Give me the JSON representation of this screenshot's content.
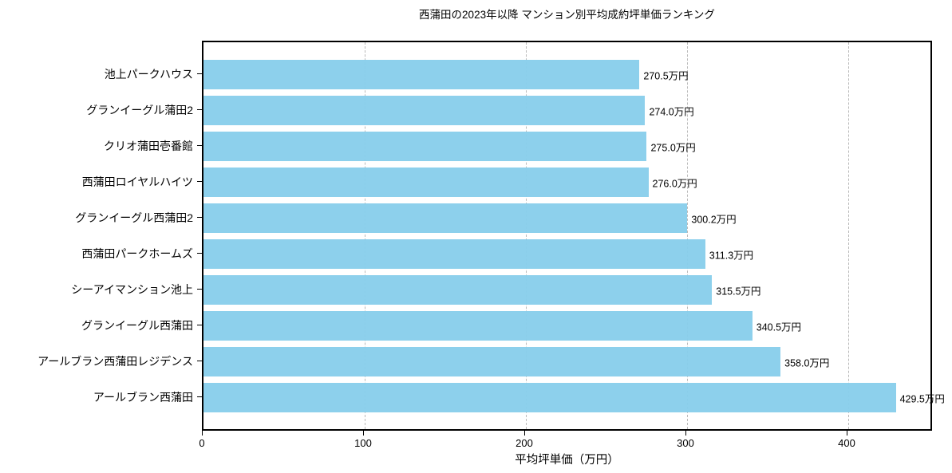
{
  "title": "西蒲田の2023年以降 マンション別平均成約坪単価ランキング",
  "xlabel": "平均坪単価（万円）",
  "colors": {
    "bar": "#87CEEB",
    "axis": "#000000",
    "grid": "#b9b9b9",
    "background": "#ffffff",
    "text": "#000000"
  },
  "chart_data": {
    "type": "bar",
    "orientation": "horizontal",
    "title": "西蒲田の2023年以降 マンション別平均成約坪単価ランキング",
    "xlabel": "平均坪単価（万円）",
    "ylabel": "",
    "categories": [
      "池上パークハウス",
      "グランイーグル蒲田2",
      "クリオ蒲田壱番館",
      "西蒲田ロイヤルハイツ",
      "グランイーグル西蒲田2",
      "西蒲田パークホームズ",
      "シーアイマンション池上",
      "グランイーグル西蒲田",
      "アールブラン西蒲田レジデンス",
      "アールブラン西蒲田"
    ],
    "values": [
      270.5,
      274.0,
      275.0,
      276.0,
      300.2,
      311.3,
      315.5,
      340.5,
      358.0,
      429.5
    ],
    "value_labels": [
      "270.5万円",
      "274.0万円",
      "275.0万円",
      "276.0万円",
      "300.2万円",
      "311.3万円",
      "315.5万円",
      "340.5万円",
      "358.0万円",
      "429.5万円"
    ],
    "xticks": [
      0,
      100,
      200,
      300,
      400
    ],
    "xlim": [
      0,
      451
    ],
    "grid": "vertical-dashed",
    "legend": "none",
    "unit": "万円"
  }
}
